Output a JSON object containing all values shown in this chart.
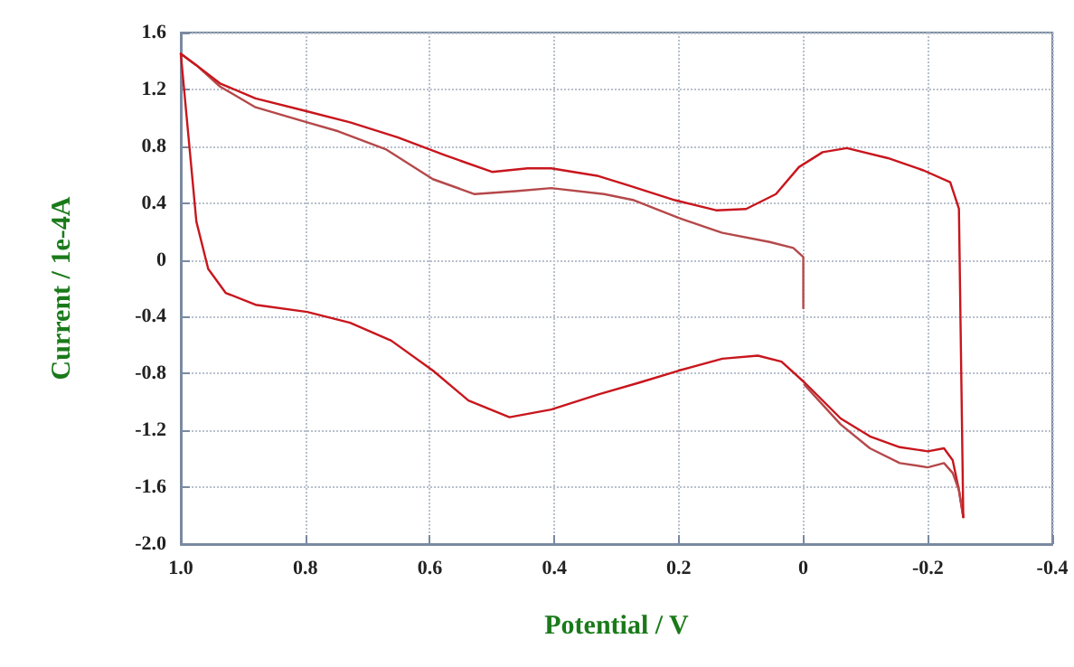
{
  "chart_data": {
    "type": "line",
    "xlabel": "Potential / V",
    "ylabel": "Current / 1e-4A",
    "xlim": [
      1.0,
      -0.4
    ],
    "xticks": [
      {
        "value": 1,
        "label": "1.0"
      },
      0.8,
      0.6,
      0.4,
      0.2,
      0,
      -0.2,
      -0.4
    ],
    "ylim": [
      -2.0,
      1.6
    ],
    "yticks": [
      1.6,
      1.2,
      0.8,
      0.4,
      0,
      -0.4,
      -0.8,
      -1.2,
      -1.6,
      {
        "value": -2,
        "label": "-2.0"
      }
    ],
    "grid": true,
    "line_style": "solid",
    "marker": "none",
    "series": [
      {
        "color": "#b5484a",
        "x": [
          0.0,
          0.0,
          0.016,
          0.054,
          0.13,
          0.2,
          0.272,
          0.32,
          0.405,
          0.462,
          0.528,
          0.595,
          0.671,
          0.747,
          0.797,
          0.88,
          0.937,
          0.975,
          1.0
        ],
        "values": [
          -0.34,
          0.02,
          0.084,
          0.126,
          0.19,
          0.295,
          0.42,
          0.463,
          0.505,
          0.484,
          0.463,
          0.568,
          0.779,
          0.905,
          0.968,
          1.074,
          1.22,
          1.37,
          1.45
        ]
      },
      {
        "color": "#c8161d",
        "x": [
          1.0,
          0.975,
          0.956,
          0.928,
          0.88,
          0.797,
          0.728,
          0.662,
          0.595,
          0.538,
          0.472,
          0.405,
          0.329,
          0.263,
          0.2,
          0.13,
          0.073,
          0.035,
          -0.002,
          -0.06,
          -0.107,
          -0.155,
          -0.2,
          -0.226,
          -0.24,
          -0.25,
          -0.257
        ],
        "values": [
          1.45,
          0.27,
          -0.063,
          -0.232,
          -0.316,
          -0.366,
          -0.442,
          -0.568,
          -0.779,
          -0.989,
          -1.107,
          -1.053,
          -0.947,
          -0.863,
          -0.779,
          -0.695,
          -0.674,
          -0.716,
          -0.863,
          -1.116,
          -1.242,
          -1.318,
          -1.347,
          -1.326,
          -1.41,
          -1.62,
          -1.81
        ]
      },
      {
        "color": "#b5484a",
        "x": [
          -0.002,
          -0.06,
          -0.107,
          -0.155,
          -0.2,
          -0.226,
          -0.24,
          -0.25,
          -0.257
        ],
        "values": [
          -0.88,
          -1.158,
          -1.326,
          -1.43,
          -1.46,
          -1.43,
          -1.5,
          -1.62,
          -1.81
        ]
      },
      {
        "color": "#c8161d",
        "x": [
          -0.257,
          -0.25,
          -0.236,
          -0.193,
          -0.136,
          -0.07,
          -0.031,
          0.007,
          0.044,
          0.092,
          0.14,
          0.206,
          0.282,
          0.329,
          0.405,
          0.443,
          0.5,
          0.576,
          0.652,
          0.728,
          0.804,
          0.88,
          0.937,
          0.975,
          1.0
        ],
        "values": [
          -1.81,
          0.36,
          0.547,
          0.63,
          0.716,
          0.787,
          0.758,
          0.653,
          0.463,
          0.358,
          0.349,
          0.42,
          0.526,
          0.59,
          0.644,
          0.644,
          0.619,
          0.737,
          0.863,
          0.968,
          1.053,
          1.137,
          1.242,
          1.37,
          1.45
        ]
      }
    ]
  }
}
